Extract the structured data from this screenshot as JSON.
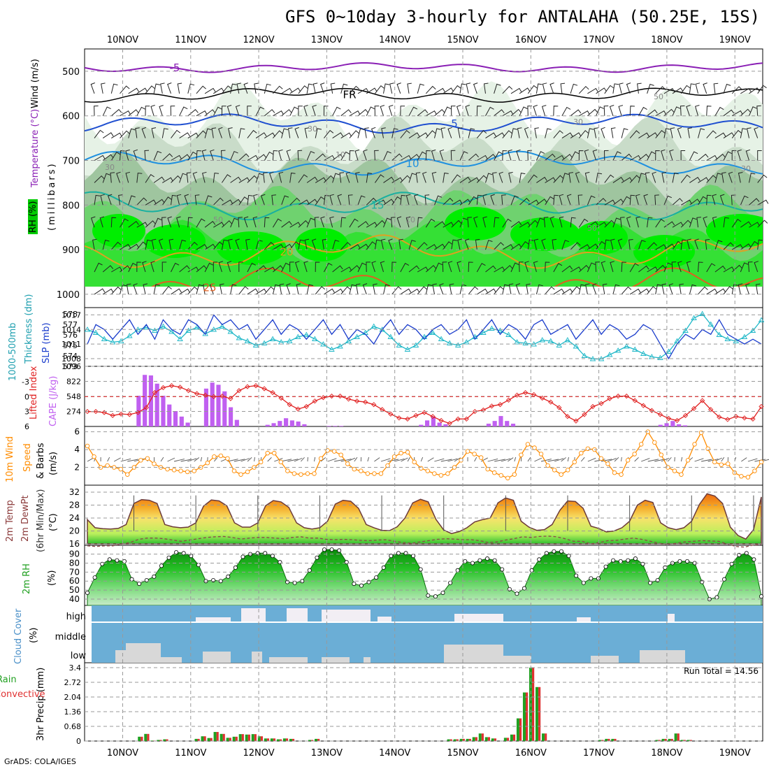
{
  "title": "GFS 0~10day 3-hourly for ANTALAHA (50.25E, 15S)",
  "footer": "GrADS: COLA/IGES",
  "colors": {
    "rh_green": "#00ee00",
    "cape": "#c060f0",
    "lifted": "#e02020",
    "slp": "#1a3ccc",
    "thick": "#20b8c8",
    "wind": "#ff8c00",
    "cloud": "#6baed6",
    "rain": "#20a020",
    "conv": "#e03030"
  },
  "chart_data": {
    "type": "multi-panel meteogram",
    "date_labels": [
      "10NOV",
      "11NOV",
      "12NOV",
      "13NOV",
      "14NOV",
      "15NOV",
      "16NOV",
      "17NOV",
      "18NOV",
      "19NOV"
    ],
    "panels": {
      "upper": {
        "labels": {
          "rh": "RH (%)",
          "temperature": "Temperature (°C)",
          "wind": "Wind (m/s)",
          "axis": "(millibars)"
        },
        "yticks": [
          "500",
          "600",
          "700",
          "800",
          "900",
          "1000"
        ],
        "ylim": [
          450,
          1030
        ],
        "contours": [
          {
            "label": "-5",
            "pressure": 492,
            "color": "#8a1fb5"
          },
          {
            "label": "FR",
            "pressure": 553,
            "color": "#000000"
          },
          {
            "label": "5",
            "pressure": 618,
            "color": "#1f4fd0"
          },
          {
            "label": "10",
            "pressure": 707,
            "color": "#1e90e0"
          },
          {
            "label": "15",
            "pressure": 800,
            "color": "#18b0a0"
          },
          {
            "label": "20",
            "pressure": 905,
            "color": "#e0a020"
          },
          {
            "label": "25",
            "pressure": 985,
            "color": "#e06020"
          }
        ],
        "rh_contour_labels": [
          "30",
          "30",
          "10",
          "30",
          "50",
          "50",
          "30",
          "50",
          "10"
        ]
      },
      "slp_thickness": {
        "labels": {
          "slp": "SLP (mb)",
          "thickness": "Thickness (dm)",
          "thickness_layer": "1000-500mb"
        },
        "thickness_ticks": [
          "573",
          "574",
          "575",
          "576",
          "577",
          "578"
        ],
        "slp_ticks": [
          "1008",
          "1011",
          "1014",
          "1017"
        ],
        "slp_mb": [
          1011,
          1015,
          1014,
          1012,
          1014,
          1016,
          1013,
          1015,
          1012,
          1016,
          1014,
          1013,
          1016,
          1015,
          1013,
          1017,
          1015,
          1016,
          1014,
          1015,
          1012,
          1014,
          1016,
          1013,
          1015,
          1014,
          1012,
          1014,
          1016,
          1013,
          1015,
          1012,
          1014,
          1013,
          1011,
          1014,
          1016,
          1013,
          1015,
          1014,
          1012,
          1014,
          1015,
          1013,
          1014,
          1016,
          1012,
          1014,
          1016,
          1013,
          1015,
          1014,
          1012,
          1015,
          1016,
          1013,
          1014,
          1015,
          1012,
          1014,
          1016,
          1013,
          1015,
          1014,
          1012,
          1013,
          1015,
          1014,
          1011,
          1008,
          1011,
          1013,
          1012,
          1014,
          1013,
          1016,
          1013,
          1012,
          1011,
          1012,
          1011
        ],
        "thickness_dm": [
          576.5,
          576.2,
          575.6,
          575.3,
          575.4,
          575.9,
          576.5,
          576.7,
          576.4,
          576.8,
          576.3,
          575.6,
          576.4,
          576.7,
          576.1,
          576.5,
          576.8,
          576.3,
          575.7,
          575.4,
          575.0,
          575.2,
          575.6,
          575.3,
          575.4,
          575.8,
          576.0,
          575.6,
          575.1,
          574.6,
          574.9,
          575.4,
          575.8,
          576.2,
          576.8,
          576.5,
          575.8,
          575.0,
          574.6,
          575.0,
          575.8,
          576.2,
          575.6,
          575.2,
          575.0,
          575.3,
          575.8,
          576.2,
          576.6,
          576.4,
          576.0,
          575.3,
          575.2,
          575.1,
          575.5,
          575.4,
          575.0,
          575.5,
          574.9,
          574.0,
          573.7,
          573.7,
          574.1,
          574.5,
          574.9,
          574.6,
          574.2,
          573.9,
          573.8,
          574.4,
          575.4,
          576.4,
          577.6,
          578.0,
          577.0,
          576.0,
          575.6,
          575.4,
          575.8,
          576.4,
          577.4
        ]
      },
      "cape_li": {
        "labels": {
          "li": "Lifted Index",
          "cape": "CAPE (J/kg)"
        },
        "li_ticks": [
          "-3",
          "0",
          "3",
          "6"
        ],
        "cape_ticks": [
          "274",
          "548",
          "822",
          "1096"
        ],
        "lifted_index": [
          3,
          3,
          3.2,
          3.8,
          3.5,
          3.6,
          3.2,
          2.2,
          -0.8,
          -1.8,
          -2.2,
          -1.9,
          -1.2,
          -0.6,
          -0.3,
          0.0,
          -0.1,
          0.4,
          -1.2,
          -2.0,
          -2.2,
          -1.6,
          -0.8,
          0.3,
          1.6,
          2.5,
          2.0,
          0.9,
          0.2,
          -0.1,
          -0.1,
          0.5,
          0.9,
          1.1,
          1.6,
          2.6,
          3.5,
          4.3,
          4.5,
          3.8,
          3.2,
          4.0,
          4.8,
          5.4,
          4.5,
          4.5,
          3.0,
          2.7,
          1.9,
          1.6,
          0.7,
          -0.3,
          -0.8,
          -0.4,
          0.3,
          1.1,
          2.2,
          4.0,
          4.9,
          3.6,
          2.0,
          1.4,
          0.4,
          -0.1,
          -0.1,
          0.8,
          1.8,
          2.8,
          3.6,
          4.4,
          4.8,
          3.8,
          2.4,
          0.8,
          2.6,
          4.1,
          4.6,
          4.0,
          4.3,
          4.5,
          2.0
        ],
        "cape": [
          0,
          0,
          0,
          0,
          0,
          0,
          0,
          0,
          560,
          940,
          930,
          780,
          560,
          400,
          280,
          180,
          70,
          0,
          0,
          690,
          800,
          760,
          640,
          350,
          120,
          0,
          0,
          0,
          0,
          30,
          60,
          100,
          150,
          110,
          90,
          40,
          0,
          0,
          0,
          10,
          10,
          10,
          0,
          0,
          0,
          0,
          0,
          0,
          0,
          0,
          0,
          0,
          0,
          0,
          30,
          110,
          180,
          70,
          40,
          0,
          0,
          0,
          0,
          0,
          0,
          50,
          100,
          190,
          100,
          50,
          0,
          0,
          0,
          0,
          0,
          0,
          0,
          0,
          0,
          0,
          0,
          0,
          0,
          0,
          0,
          0,
          0,
          0,
          0,
          0,
          0,
          0,
          0,
          30,
          60,
          100,
          40,
          20,
          0,
          0,
          0,
          0,
          0,
          0,
          0,
          0,
          0,
          0,
          0,
          0
        ]
      },
      "wind10m": {
        "labels": {
          "name": "10m Wind",
          "speed": "Speed",
          "barbs": "& Barbs",
          "unit": "(m/s)"
        },
        "yticks": [
          "2",
          "4",
          "6"
        ],
        "speed": [
          4.4,
          3.2,
          2.0,
          2.2,
          2.0,
          1.8,
          1.2,
          2.0,
          2.8,
          3.0,
          2.4,
          2.0,
          1.8,
          1.7,
          1.6,
          1.5,
          1.6,
          2.0,
          2.5,
          3.2,
          3.3,
          3.0,
          1.6,
          1.2,
          1.5,
          2.0,
          2.6,
          3.6,
          3.6,
          2.6,
          1.6,
          1.3,
          1.2,
          1.3,
          1.3,
          3.0,
          3.9,
          3.8,
          3.4,
          2.4,
          1.8,
          1.6,
          1.3,
          1.3,
          1.3,
          2.2,
          3.2,
          3.6,
          3.7,
          2.6,
          1.9,
          1.6,
          1.3,
          1.1,
          1.3,
          2.0,
          2.8,
          3.8,
          3.5,
          3.1,
          1.8,
          1.4,
          1.1,
          0.8,
          1.2,
          3.4,
          4.6,
          4.2,
          3.5,
          2.2,
          1.7,
          1.2,
          1.7,
          2.6,
          3.6,
          4.1,
          4.0,
          3.0,
          2.4,
          1.4,
          1.2,
          2.8,
          3.5,
          4.6,
          6.0,
          4.8,
          3.4,
          2.0,
          1.6,
          1.2,
          2.8,
          4.6,
          5.9,
          4.1,
          2.6,
          2.3,
          2.4,
          1.4,
          1.0,
          0.9,
          1.6,
          2.6
        ]
      },
      "temp2m": {
        "labels": {
          "name": "2m Temp",
          "dewpt": "2m DewPt",
          "minmax": "(6hr Min/Max)",
          "unit": "(°C)"
        },
        "yticks": [
          "16",
          "20",
          "24",
          "28",
          "32"
        ],
        "temp": [
          23.5,
          21.0,
          20.7,
          20.6,
          20.8,
          22.0,
          28.5,
          29.7,
          29.5,
          28.5,
          22.0,
          21.3,
          21.0,
          21.2,
          22.5,
          27.7,
          29.6,
          29.3,
          27.8,
          22.5,
          21.2,
          21.2,
          22.5,
          27.8,
          29.4,
          29.0,
          27.3,
          22.5,
          21.0,
          20.6,
          21.0,
          23.0,
          28.3,
          29.5,
          29.2,
          27.0,
          22.0,
          21.0,
          20.2,
          20.1,
          21.3,
          24.0,
          28.7,
          29.8,
          29.0,
          23.6,
          20.3,
          19.2,
          19.8,
          21.0,
          22.8,
          23.5,
          24.0,
          28.7,
          30.2,
          29.5,
          23.0,
          21.2,
          20.2,
          20.4,
          22.0,
          26.4,
          29.3,
          29.1,
          27.0,
          21.5,
          20.8,
          19.7,
          20.0,
          21.0,
          23.0,
          28.0,
          29.5,
          28.8,
          22.5,
          21.0,
          20.4,
          21.0,
          23.0,
          28.2,
          31.5,
          30.8,
          28.5,
          21.2,
          18.6,
          17.5,
          20.4,
          30.5
        ],
        "dewpt": [
          18.4,
          18.2,
          18.4,
          18.4,
          19.0,
          19.4,
          20.4,
          20.8,
          20.8,
          20.6,
          20.2,
          19.8,
          20.2,
          20.6,
          21.0,
          21.2,
          21.3,
          21.0,
          20.5,
          20.8,
          21.0,
          21.0,
          20.8,
          20.6,
          21.0,
          21.2,
          20.8,
          20.8,
          20.4,
          20.3,
          20.4,
          20.3,
          20.1,
          20.0,
          20.2,
          20.3,
          19.8,
          19.4,
          19.2,
          19.6,
          20.0,
          20.4,
          20.6,
          20.5,
          20.3,
          20.3,
          20.0,
          19.4,
          19.6,
          20.2,
          20.6,
          21.2,
          21.0,
          21.3,
          21.4,
          21.2,
          20.6,
          19.8,
          19.8,
          19.0,
          19.4,
          20.0,
          20.1,
          20.5,
          20.8,
          20.4,
          19.8,
          19.2,
          18.8,
          19.2,
          19.6,
          19.8,
          20.0,
          19.9,
          19.8,
          19.0,
          18.2,
          18.0,
          18.6,
          18.8
        ]
      },
      "rh2m": {
        "labels": {
          "name": "2m RH",
          "unit": "(%)"
        },
        "yticks": [
          "40",
          "50",
          "60",
          "70",
          "80",
          "90"
        ],
        "values": [
          47,
          64,
          79,
          84,
          83,
          82,
          62,
          57,
          61,
          65,
          77,
          86,
          92,
          91,
          88,
          78,
          60,
          61,
          60,
          65,
          75,
          87,
          90,
          91,
          91,
          88,
          81,
          59,
          58,
          60,
          72,
          86,
          95,
          95,
          94,
          81,
          57,
          55,
          59,
          64,
          75,
          88,
          91,
          91,
          88,
          73,
          44,
          43,
          47,
          58,
          72,
          82,
          80,
          83,
          85,
          83,
          73,
          51,
          46,
          52,
          72,
          84,
          91,
          93,
          93,
          88,
          66,
          58,
          63,
          63,
          76,
          83,
          82,
          83,
          85,
          79,
          58,
          61,
          75,
          80,
          82,
          82,
          80,
          59,
          40,
          42,
          62,
          79,
          89,
          91,
          84,
          43
        ]
      },
      "cloud": {
        "labels": {
          "name": "Cloud Cover",
          "unit": "(%)",
          "high": "high",
          "middle": "middle",
          "low": "low"
        }
      },
      "precip": {
        "labels": {
          "name": "3hr Precip (mm)",
          "total": "Total / Rain",
          "convective": "Convective",
          "run_total": "Run Total = 14.56"
        },
        "yticks": [
          "0",
          "0.68",
          "1.36",
          "2.04",
          "2.72",
          "3.4"
        ],
        "ylim": [
          0,
          3.4
        ],
        "total": [
          0,
          0,
          0,
          0,
          0,
          0,
          0,
          0,
          0.2,
          0.33,
          0.02,
          0.05,
          0.08,
          0,
          0,
          0,
          0,
          0.1,
          0.22,
          0.14,
          0.42,
          0.33,
          0.15,
          0.2,
          0.32,
          0.3,
          0.32,
          0.22,
          0.12,
          0.12,
          0.08,
          0.12,
          0.1,
          0,
          0,
          0.05,
          0.1,
          0,
          0,
          0,
          0,
          0,
          0,
          0,
          0,
          0,
          0,
          0,
          0,
          0,
          0,
          0,
          0,
          0,
          0,
          0,
          0,
          0.08,
          0.08,
          0.1,
          0.1,
          0.18,
          0.35,
          0.18,
          0.12,
          0,
          0.15,
          0.3,
          1.05,
          2.25,
          3.4,
          2.5,
          0.35,
          0,
          0,
          0,
          0,
          0,
          0,
          0,
          0,
          0.05,
          0.1,
          0.1,
          0,
          0,
          0,
          0,
          0,
          0,
          0.05,
          0.1,
          0.1,
          0.35,
          0.05,
          0.05,
          0,
          0,
          0,
          0,
          0,
          0,
          0,
          0,
          0,
          0,
          0
        ]
      }
    }
  }
}
